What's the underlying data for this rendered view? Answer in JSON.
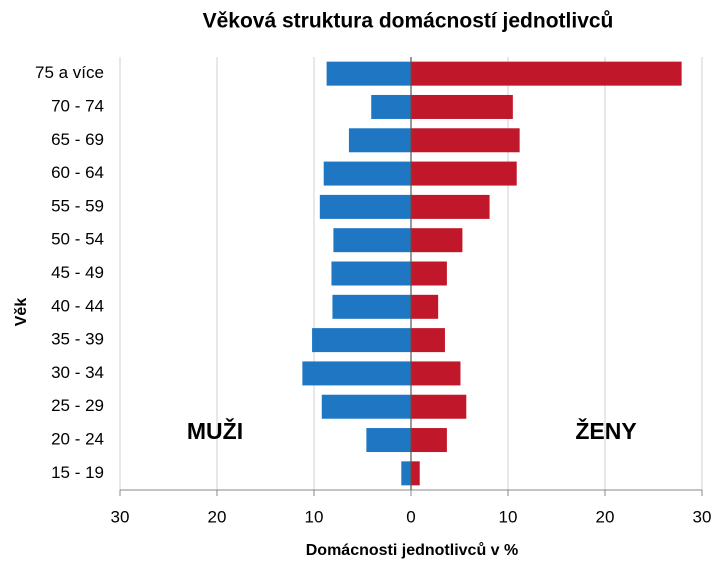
{
  "chart_data": {
    "type": "pyramid",
    "title": "Věková struktura domácností jednotlivců",
    "x_label": "Domácnosti jednotlivců v %",
    "y_label": "Věk",
    "categories": [
      "75 a více",
      "70 - 74",
      "65 - 69",
      "60 - 64",
      "55 - 59",
      "50 - 54",
      "45 - 49",
      "40 - 44",
      "35 - 39",
      "30 - 34",
      "25 - 29",
      "20 - 24",
      "15 - 19"
    ],
    "series": [
      {
        "name": "MUŽI",
        "color": "#1f77c4",
        "side": "left",
        "values": [
          8.7,
          4.1,
          6.4,
          9.0,
          9.4,
          8.0,
          8.2,
          8.1,
          10.2,
          11.2,
          9.2,
          4.6,
          1.0
        ]
      },
      {
        "name": "ŽENY",
        "color": "#c0182a",
        "side": "right",
        "values": [
          27.9,
          10.5,
          11.2,
          10.9,
          8.1,
          5.3,
          3.7,
          2.8,
          3.5,
          5.1,
          5.7,
          3.7,
          0.9
        ]
      }
    ],
    "xlim": [
      -30,
      30
    ],
    "xticks": [
      {
        "value": -30,
        "label": "30"
      },
      {
        "value": -20,
        "label": "20"
      },
      {
        "value": -10,
        "label": "10"
      },
      0,
      10,
      20,
      30
    ],
    "grid": true
  }
}
